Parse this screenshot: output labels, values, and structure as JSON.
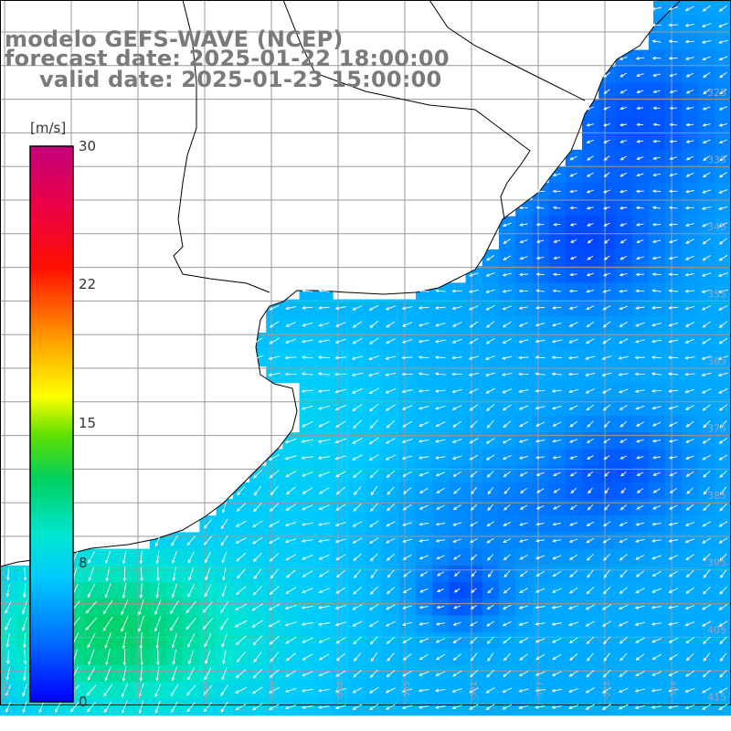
{
  "title": {
    "line1": "modelo GEFS-WAVE (NCEP)",
    "line2": "forecast date: 2025-01-22 18:00:00",
    "line3": "valid date: 2025-01-23 15:00:00"
  },
  "colorbar": {
    "unit": "[m/s]",
    "min": 0,
    "max": 30,
    "ticks": [
      {
        "value": 30,
        "label": "30"
      },
      {
        "value": 22,
        "label": "22"
      },
      {
        "value": 15,
        "label": "15"
      },
      {
        "value": 8,
        "label": "8"
      },
      {
        "value": 0,
        "label": "0"
      }
    ],
    "colors": [
      "#0000ff",
      "#00aaff",
      "#00e5e5",
      "#00cc33",
      "#55dd00",
      "#ffff00",
      "#ff9900",
      "#ff0000",
      "#dd0066",
      "#c8007a"
    ]
  },
  "map": {
    "land_color": "#ffffff",
    "coast_color": "#000000",
    "grid_color": "#9a9a9a",
    "arrow_color": "#ffffff",
    "lat_labels": [
      "325",
      "335",
      "345",
      "355",
      "365",
      "375",
      "385",
      "395",
      "405",
      "415"
    ],
    "lon_labels": [
      "-609",
      "-605",
      "-601",
      "-597",
      "-593",
      "-589",
      "-585",
      "-581",
      "-577",
      "-573",
      "-569"
    ]
  }
}
